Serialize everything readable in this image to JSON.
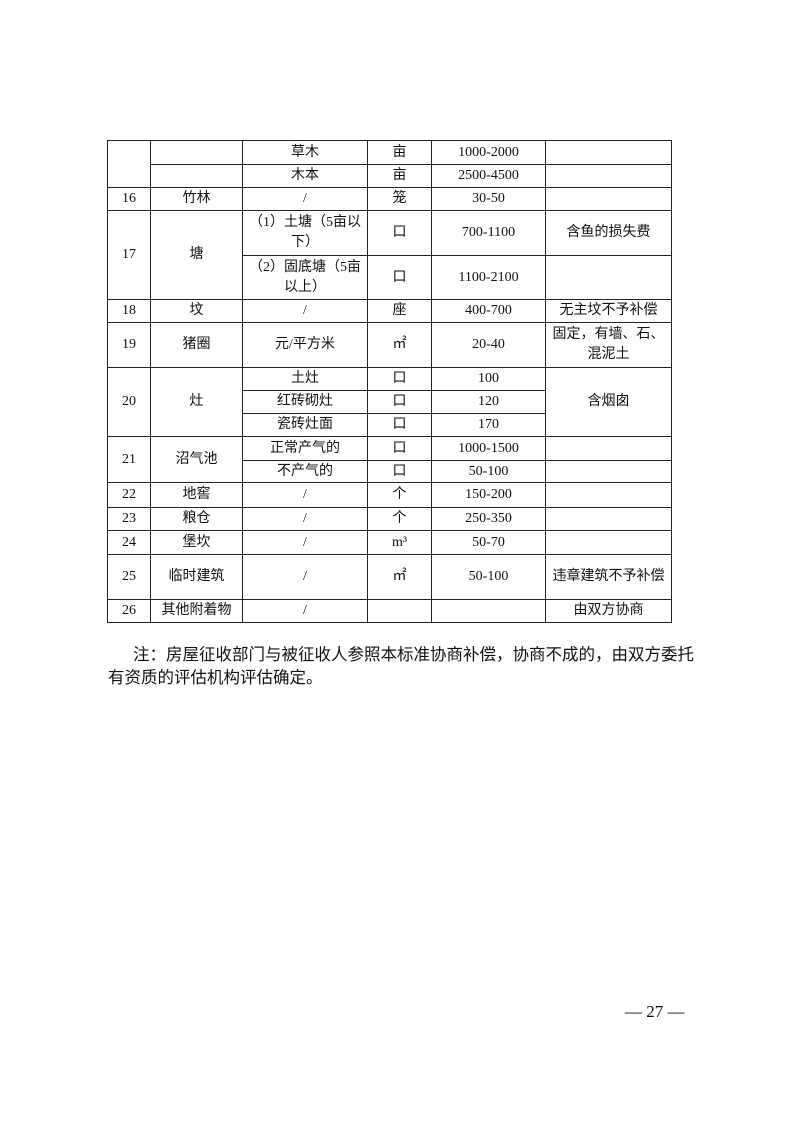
{
  "table": {
    "rows": [
      {
        "no": "",
        "name": "",
        "spec": "草木",
        "unit": "亩",
        "price": "1000-2000",
        "note": ""
      },
      {
        "spec": "木本",
        "unit": "亩",
        "price": "2500-4500",
        "note": ""
      },
      {
        "no": "16",
        "name": "竹林",
        "spec": "/",
        "unit": "笼",
        "price": "30-50",
        "note": ""
      },
      {
        "no": "17",
        "name": "塘",
        "spec": "（1）土塘（5亩以下）",
        "unit": "口",
        "price": "700-1100",
        "note": "含鱼的损失费"
      },
      {
        "spec": "（2）固底塘（5亩以上）",
        "unit": "口",
        "price": "1100-2100",
        "note": ""
      },
      {
        "no": "18",
        "name": "坟",
        "spec": "/",
        "unit": "座",
        "price": "400-700",
        "note": "无主坟不予补偿"
      },
      {
        "no": "19",
        "name": "猪圈",
        "spec": "元/平方米",
        "unit": "㎡",
        "price": "20-40",
        "note": "固定，有墙、石、混泥土"
      },
      {
        "no": "20",
        "name": "灶",
        "spec": "土灶",
        "unit": "口",
        "price": "100",
        "note": "含烟囱"
      },
      {
        "spec": "红砖砌灶",
        "unit": "口",
        "price": "120"
      },
      {
        "spec": "瓷砖灶面",
        "unit": "口",
        "price": "170"
      },
      {
        "no": "21",
        "name": "沼气池",
        "spec": "正常产气的",
        "unit": "口",
        "price": "1000-1500",
        "note": ""
      },
      {
        "spec": "不产气的",
        "unit": "口",
        "price": "50-100",
        "note": ""
      },
      {
        "no": "22",
        "name": "地窖",
        "spec": "/",
        "unit": "个",
        "price": "150-200",
        "note": ""
      },
      {
        "no": "23",
        "name": "粮仓",
        "spec": "/",
        "unit": "个",
        "price": "250-350",
        "note": ""
      },
      {
        "no": "24",
        "name": "堡坎",
        "spec": "/",
        "unit": "m³",
        "price": "50-70",
        "note": ""
      },
      {
        "no": "25",
        "name": "临时建筑",
        "spec": "/",
        "unit": "㎡",
        "price": "50-100",
        "note": "违章建筑不予补偿"
      },
      {
        "no": "26",
        "name": "其他附着物",
        "spec": "/",
        "unit": "",
        "price": "",
        "note": "由双方协商"
      }
    ]
  },
  "footnote": "注：房屋征收部门与被征收人参照本标准协商补偿，协商不成的，由双方委托有资质的评估机构评估确定。",
  "page_number": "— 27 —"
}
